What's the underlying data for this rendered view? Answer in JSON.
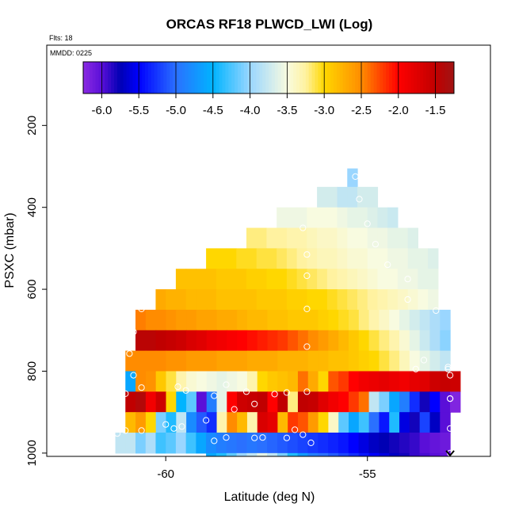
{
  "chart_data": {
    "type": "heatmap",
    "title": "ORCAS RF18 PLWCD_LWI (Log)",
    "flts_note": "Flts: 18",
    "mmdd_note": "MMDD: 0225",
    "xlabel": "Latitude (deg N)",
    "ylabel": "PSXC (mbar)",
    "xlim": [
      -62.95,
      -51.95
    ],
    "ylim": [
      1008,
      4
    ],
    "y_inverted": true,
    "x_ticks": [
      -60,
      -55
    ],
    "x_tick_labels": [
      "-60",
      "-55"
    ],
    "y_ticks": [
      200,
      400,
      600,
      800,
      1000
    ],
    "y_tick_labels": [
      "200",
      "400",
      "600",
      "800",
      "1000"
    ],
    "colorbar": {
      "range": [
        -6.25,
        -1.25
      ],
      "ticks": [
        -6.0,
        -5.5,
        -5.0,
        -4.5,
        -4.0,
        -3.5,
        -3.0,
        -2.5,
        -2.0,
        -1.5
      ],
      "tick_labels": [
        "-6.0",
        "-5.5",
        "-5.0",
        "-4.5",
        "-4.0",
        "-3.5",
        "-3.0",
        "-2.5",
        "-2.0",
        "-1.5"
      ],
      "stops": [
        {
          "v": -6.25,
          "c": "#8a2be2"
        },
        {
          "v": -6.0,
          "c": "#5a0fd8"
        },
        {
          "v": -5.75,
          "c": "#0000b4"
        },
        {
          "v": -5.5,
          "c": "#0000ff"
        },
        {
          "v": -5.0,
          "c": "#2a70ff"
        },
        {
          "v": -4.5,
          "c": "#00b4ff"
        },
        {
          "v": -4.0,
          "c": "#9ad6ff"
        },
        {
          "v": -3.5,
          "c": "#f8fbe0"
        },
        {
          "v": -3.25,
          "c": "#fff2a0"
        },
        {
          "v": -3.0,
          "c": "#ffd700"
        },
        {
          "v": -2.5,
          "c": "#ff8c00"
        },
        {
          "v": -2.0,
          "c": "#ff0000"
        },
        {
          "v": -1.5,
          "c": "#c00000"
        },
        {
          "v": -1.25,
          "c": "#a01414"
        }
      ]
    },
    "lat_bin_width": 0.25,
    "rows": [
      {
        "p0": 305,
        "p1": 350,
        "segments": [
          {
            "from": -55.5,
            "to": -55.25,
            "values": [
              -4.0
            ]
          }
        ]
      },
      {
        "p0": 350,
        "p1": 400,
        "segments": [
          {
            "from": -56.25,
            "to": -54.75,
            "values": [
              -3.7,
              -3.7,
              -3.8,
              -3.8,
              -3.7,
              -3.7
            ]
          }
        ]
      },
      {
        "p0": 400,
        "p1": 450,
        "segments": [
          {
            "from": -57.25,
            "to": -54.25,
            "values": [
              -3.55,
              -3.55,
              -3.55,
              -3.5,
              -3.5,
              -3.5,
              -3.55,
              -3.6,
              -3.6,
              -3.65,
              -3.7,
              -3.75
            ]
          }
        ]
      },
      {
        "p0": 450,
        "p1": 500,
        "segments": [
          {
            "from": -58.0,
            "to": -53.75,
            "values": [
              -3.2,
              -3.2,
              -3.25,
              -3.25,
              -3.3,
              -3.3,
              -3.35,
              -3.4,
              -3.4,
              -3.45,
              -3.5,
              -3.5,
              -3.55,
              -3.55,
              -3.6,
              -3.6,
              -3.65
            ]
          }
        ]
      },
      {
        "p0": 500,
        "p1": 550,
        "segments": [
          {
            "from": -59.0,
            "to": -53.25,
            "values": [
              -3.0,
              -3.0,
              -3.0,
              -3.05,
              -3.05,
              -3.1,
              -3.1,
              -3.15,
              -3.2,
              -3.25,
              -3.3,
              -3.35,
              -3.35,
              -3.4,
              -3.45,
              -3.45,
              -3.5,
              -3.5,
              -3.55,
              -3.55,
              -3.6,
              -3.6,
              -3.65
            ]
          }
        ]
      },
      {
        "p0": 550,
        "p1": 600,
        "segments": [
          {
            "from": -59.75,
            "to": -53.25,
            "values": [
              -2.85,
              -2.85,
              -2.85,
              -2.85,
              -2.9,
              -2.9,
              -2.9,
              -2.95,
              -2.95,
              -3.0,
              -3.0,
              -3.05,
              -3.1,
              -3.15,
              -3.2,
              -3.25,
              -3.3,
              -3.35,
              -3.4,
              -3.45,
              -3.5,
              -3.5,
              -3.55,
              -3.55,
              -3.6,
              -3.6
            ]
          }
        ]
      },
      {
        "p0": 600,
        "p1": 650,
        "segments": [
          {
            "from": -60.25,
            "to": -53.25,
            "values": [
              -2.7,
              -2.75,
              -2.75,
              -2.8,
              -2.8,
              -2.8,
              -2.85,
              -2.85,
              -2.85,
              -2.85,
              -2.9,
              -2.9,
              -2.9,
              -2.95,
              -2.95,
              -3.0,
              -3.0,
              -3.05,
              -3.1,
              -3.15,
              -3.2,
              -3.25,
              -3.3,
              -3.35,
              -3.4,
              -3.45,
              -3.5,
              -3.55
            ]
          }
        ]
      },
      {
        "p0": 650,
        "p1": 700,
        "segments": [
          {
            "from": -60.75,
            "to": -52.95,
            "values": [
              -2.45,
              -2.5,
              -2.5,
              -2.55,
              -2.6,
              -2.6,
              -2.65,
              -2.65,
              -2.7,
              -2.7,
              -2.75,
              -2.8,
              -2.8,
              -2.85,
              -2.85,
              -2.9,
              -2.9,
              -2.9,
              -2.95,
              -3.0,
              -3.05,
              -3.1,
              -3.2,
              -3.3,
              -3.4,
              -3.5,
              -3.6,
              -3.7,
              -3.8,
              -3.9,
              -4.0
            ]
          }
        ]
      },
      {
        "p0": 700,
        "p1": 750,
        "segments": [
          {
            "from": -60.75,
            "to": -52.95,
            "values": [
              -1.45,
              -1.45,
              -1.5,
              -1.55,
              -1.6,
              -1.7,
              -1.75,
              -1.85,
              -1.9,
              -1.95,
              -2.0,
              -2.05,
              -2.1,
              -2.15,
              -2.2,
              -2.3,
              -2.4,
              -2.5,
              -2.6,
              -2.7,
              -2.8,
              -2.9,
              -3.0,
              -3.1,
              -3.2,
              -3.3,
              -3.45,
              -3.6,
              -3.75,
              -3.9,
              -4.05
            ]
          }
        ]
      },
      {
        "p0": 750,
        "p1": 800,
        "segments": [
          {
            "from": -61.0,
            "to": -52.95,
            "values": [
              -2.5,
              -2.5,
              -2.5,
              -2.5,
              -2.55,
              -2.55,
              -2.6,
              -2.6,
              -2.6,
              -2.65,
              -2.65,
              -2.65,
              -2.7,
              -2.7,
              -2.7,
              -2.75,
              -2.75,
              -2.75,
              -2.8,
              -2.8,
              -2.85,
              -2.85,
              -2.9,
              -2.95,
              -3.0,
              -3.1,
              -3.2,
              -3.35,
              -3.5,
              -3.6,
              -3.7,
              -3.8
            ]
          }
        ]
      },
      {
        "p0": 800,
        "p1": 850,
        "segments": [
          {
            "from": -61.0,
            "to": -52.7,
            "values": [
              -4.6,
              -2.5,
              -2.55,
              -2.9,
              -3.1,
              -3.3,
              -3.45,
              -3.5,
              -3.55,
              -3.6,
              -3.55,
              -3.5,
              -3.3,
              -3.0,
              -2.9,
              -2.85,
              -2.8,
              -2.4,
              -2.7,
              -3.0,
              -2.3,
              -2.2,
              -2.0,
              -1.9,
              -1.85,
              -1.8,
              -1.85,
              -1.9,
              -1.8,
              -1.75,
              -1.6,
              -1.55,
              -1.6
            ]
          }
        ]
      },
      {
        "p0": 850,
        "p1": 900,
        "segments": [
          {
            "from": -61.0,
            "to": -52.7,
            "values": [
              -1.5,
              -1.4,
              -1.9,
              -1.6,
              -3.0,
              -4.5,
              -4.2,
              -6.0,
              -4.9,
              -3.6,
              -2.0,
              -1.6,
              -1.55,
              -1.5,
              -2.0,
              -1.5,
              -3.2,
              -1.5,
              -1.55,
              -1.75,
              -1.9,
              -2.0,
              -2.2,
              -2.4,
              -3.8,
              -4.1,
              -4.6,
              -4.9,
              -5.3,
              -5.8,
              -5.5,
              -6.0,
              -6.2
            ]
          }
        ]
      },
      {
        "p0": 900,
        "p1": 950,
        "segments": [
          {
            "from": -61.0,
            "to": -52.95,
            "values": [
              -2.8,
              -2.6,
              -3.0,
              -4.1,
              -4.4,
              -3.8,
              -4.8,
              -5.1,
              -5.3,
              -3.3,
              -2.5,
              -2.8,
              -3.3,
              -1.7,
              -1.8,
              -2.8,
              -2.2,
              -2.3,
              -2.6,
              -3.0,
              -3.4,
              -4.2,
              -4.6,
              -4.3,
              -5.0,
              -5.4,
              -4.4,
              -5.6,
              -5.8,
              -5.2,
              -5.7,
              -6.0
            ]
          }
        ]
      },
      {
        "p0": 950,
        "p1": 1000,
        "segments": [
          {
            "from": -61.25,
            "to": -59.0,
            "values": [
              -3.8,
              -3.8,
              -4.1,
              -3.9,
              -4.3,
              -4.2,
              -4.0,
              -4.3,
              -4.6
            ]
          },
          {
            "from": -59.0,
            "to": -52.95,
            "values": [
              -4.8,
              -4.9,
              -4.95,
              -5.0,
              -4.95,
              -5.0,
              -5.05,
              -5.1,
              -5.15,
              -5.2,
              -5.25,
              -5.3,
              -5.35,
              -5.4,
              -5.5,
              -5.6,
              -5.7,
              -5.75,
              -5.8,
              -5.85,
              -5.9,
              -6.0,
              -6.05,
              -6.1
            ]
          }
        ]
      },
      {
        "p0": 1000,
        "p1": 1045,
        "segments": [
          {
            "from": -59.0,
            "to": -52.95,
            "values": [
              -4.6,
              -4.4,
              -4.2,
              -4.0,
              -3.8,
              -3.6,
              -3.8,
              -4.1,
              -4.4,
              -4.7,
              -4.9,
              -5.0,
              -5.1,
              -5.2,
              -5.3,
              -5.4,
              -5.5,
              -5.6,
              -5.7,
              -5.8,
              -5.9,
              -5.95,
              -6.0,
              -6.05
            ]
          }
        ]
      }
    ],
    "points": [
      [
        -55.3,
        325
      ],
      [
        -55.2,
        380
      ],
      [
        -55.0,
        440
      ],
      [
        -56.6,
        450
      ],
      [
        -56.5,
        515
      ],
      [
        -54.8,
        490
      ],
      [
        -56.5,
        567
      ],
      [
        -54.5,
        540
      ],
      [
        -54.0,
        575
      ],
      [
        -60.6,
        648
      ],
      [
        -56.5,
        648
      ],
      [
        -54.0,
        625
      ],
      [
        -53.3,
        652
      ],
      [
        -60.8,
        704
      ],
      [
        -60.9,
        757
      ],
      [
        -56.5,
        740
      ],
      [
        -53.6,
        773
      ],
      [
        -53.0,
        790
      ],
      [
        -60.8,
        810
      ],
      [
        -61.0,
        855
      ],
      [
        -60.6,
        840
      ],
      [
        -59.7,
        838
      ],
      [
        -59.5,
        847
      ],
      [
        -58.5,
        833
      ],
      [
        -58.0,
        850
      ],
      [
        -57.3,
        856
      ],
      [
        -57.0,
        852
      ],
      [
        -56.5,
        850
      ],
      [
        -58.8,
        860
      ],
      [
        -57.8,
        880
      ],
      [
        -58.3,
        893
      ],
      [
        -53.8,
        795
      ],
      [
        -53.0,
        795
      ],
      [
        -52.95,
        810
      ],
      [
        -52.95,
        867
      ],
      [
        -52.95,
        867
      ],
      [
        -61.2,
        935
      ],
      [
        -61.0,
        945
      ],
      [
        -61.2,
        952
      ],
      [
        -60.6,
        945
      ],
      [
        -60.0,
        930
      ],
      [
        -59.8,
        940
      ],
      [
        -59.6,
        935
      ],
      [
        -59.0,
        920
      ],
      [
        -58.8,
        970
      ],
      [
        -58.5,
        962
      ],
      [
        -57.8,
        963
      ],
      [
        -57.6,
        962
      ],
      [
        -57.0,
        963
      ],
      [
        -56.8,
        943
      ],
      [
        -56.6,
        955
      ],
      [
        -56.4,
        975
      ],
      [
        -52.95,
        940
      ],
      [
        -52.95,
        1000
      ]
    ]
  }
}
